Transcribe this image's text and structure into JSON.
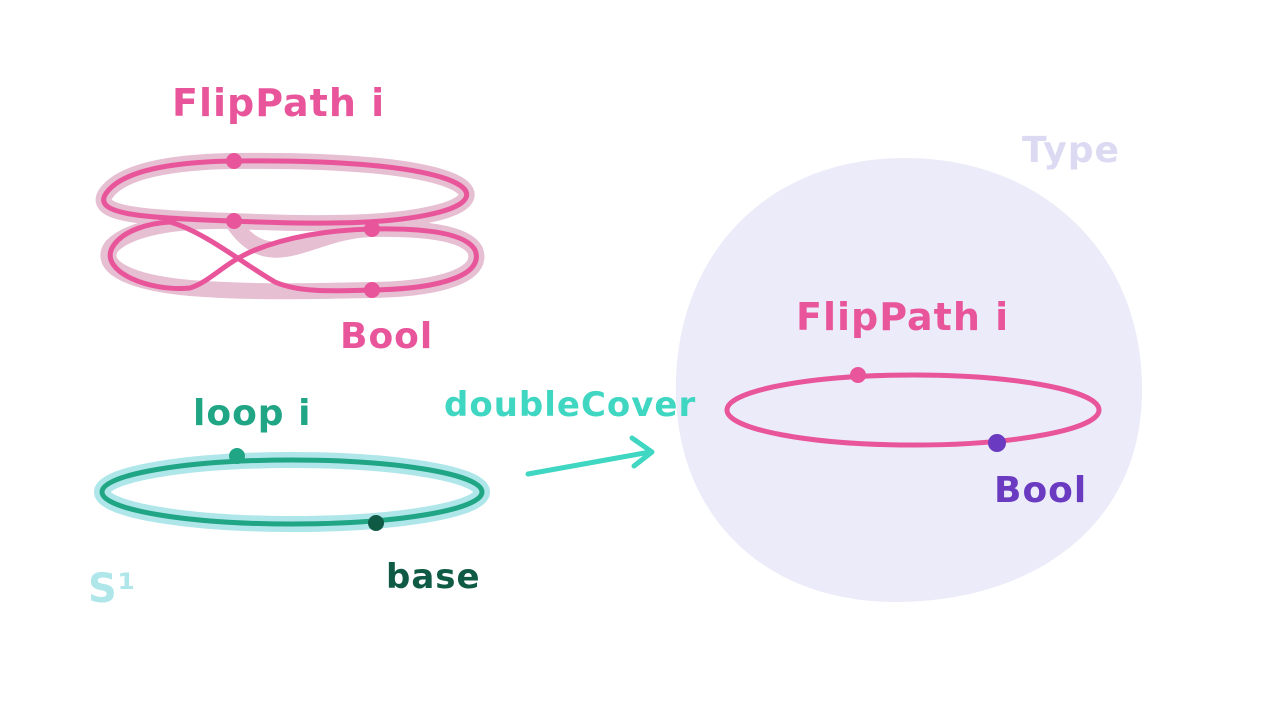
{
  "labels": {
    "cover_total_title": "FlipPath i",
    "cover_base": "Bool",
    "circle_path": "loop i",
    "circle_base": "base",
    "circle_name": "S¹",
    "map_name": "doubleCover",
    "universe_name": "Type",
    "universe_path": "FlipPath i",
    "universe_point": "Bool"
  },
  "colors": {
    "pink": "#e8559a",
    "pink_halo": "#e6bfd2",
    "teal": "#20a585",
    "teal_halo": "#aee6ea",
    "teal_dark": "#0f5a45",
    "arrow": "#3fd6c2",
    "universe_fill": "#ecebf9",
    "universe_label": "#dcd9f2",
    "purple": "#6a3bc0"
  }
}
